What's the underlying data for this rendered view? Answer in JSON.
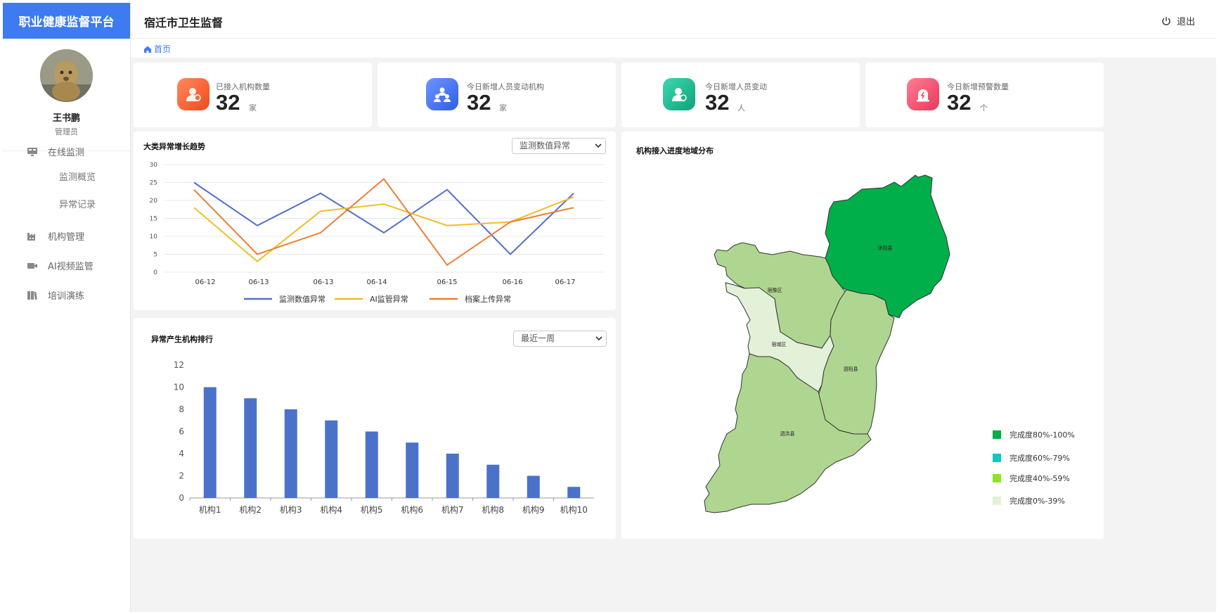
{
  "app": {
    "brand": "职业健康监督平台",
    "title": "宿迁市卫生监督",
    "logout": "退出"
  },
  "user": {
    "name": "王书鹏",
    "role": "管理员"
  },
  "menu": [
    {
      "label": "在线监测",
      "icon": "monitor-icon",
      "children": [
        "监测概览",
        "异常记录"
      ]
    },
    {
      "label": "机构管理",
      "icon": "factory-icon"
    },
    {
      "label": "AI视频监管",
      "icon": "video-camera-icon"
    },
    {
      "label": "培训演练",
      "icon": "book-icon"
    }
  ],
  "breadcrumb": {
    "home": "首页"
  },
  "stats": [
    {
      "label": "已接入机构数量",
      "value": "32",
      "unit": "家",
      "icon": "org-user-icon",
      "color": "#f5612f"
    },
    {
      "label": "今日新增人员变动机构",
      "value": "32",
      "unit": "家",
      "icon": "people-group-icon",
      "color": "#3a6df0"
    },
    {
      "label": "今日新增人员变动",
      "value": "32",
      "unit": "人",
      "icon": "user-change-icon",
      "color": "#14b38e"
    },
    {
      "label": "今日新增预警数量",
      "value": "32",
      "unit": "个",
      "icon": "alarm-icon",
      "color": "#f0506e"
    }
  ],
  "trend": {
    "title": "大类异常增长趋势",
    "filter": "监测数值异常",
    "chart_data": {
      "type": "line",
      "categories": [
        "06-12",
        "06-13",
        "06-13",
        "06-14",
        "06-15",
        "06-16",
        "06-17"
      ],
      "ylim": [
        0,
        30
      ],
      "yticks": [
        0,
        5,
        10,
        15,
        20,
        25,
        30
      ],
      "grid": true,
      "legend": "bottom",
      "x_positions": [
        0,
        1,
        2,
        3,
        4,
        5,
        6,
        7,
        8
      ],
      "x_labels_at": [
        0,
        1,
        2,
        3,
        5,
        6,
        7
      ],
      "series": [
        {
          "name": "监测数值异常",
          "color": "#5470c6",
          "values": [
            25,
            13,
            22,
            11,
            23,
            5,
            22
          ]
        },
        {
          "name": "AI监管异常",
          "color": "#f0bd27",
          "values": [
            18,
            3,
            17,
            19,
            13,
            14,
            21
          ]
        },
        {
          "name": "档案上传异常",
          "color": "#ee7e33",
          "values": [
            23,
            5,
            11,
            26,
            2,
            14,
            18
          ]
        }
      ]
    }
  },
  "ranking": {
    "title": "异常产生机构排行",
    "filter": "最近一周",
    "chart_data": {
      "type": "bar",
      "categories": [
        "机构1",
        "机构2",
        "机构3",
        "机构4",
        "机构5",
        "机构6",
        "机构7",
        "机构8",
        "机构9",
        "机构10"
      ],
      "values": [
        10,
        9,
        8,
        7,
        6,
        5,
        4,
        3,
        2,
        1
      ],
      "ylim": [
        0,
        12
      ],
      "yticks": [
        0,
        2,
        4,
        6,
        8,
        10,
        12
      ],
      "color": "#4a72c9",
      "grid": false
    }
  },
  "map": {
    "title": "机构接入进度地域分布",
    "regions": [
      {
        "name": "沭阳县",
        "fill": "#00ae4a"
      },
      {
        "name": "宿豫区",
        "fill": "#aed690"
      },
      {
        "name": "宿城区",
        "fill": "#e4f1d9"
      },
      {
        "name": "泗阳县",
        "fill": "#aed690"
      },
      {
        "name": "泗洪县",
        "fill": "#aed690"
      }
    ],
    "legend": [
      {
        "label": "完成度80%-100%",
        "color": "#00ae4a"
      },
      {
        "label": "完成度60%-79%",
        "color": "#14c6c0"
      },
      {
        "label": "完成度40%-59%",
        "color": "#8fe41c"
      },
      {
        "label": "完成度0%-39%",
        "color": "#e4f1d9"
      }
    ]
  }
}
